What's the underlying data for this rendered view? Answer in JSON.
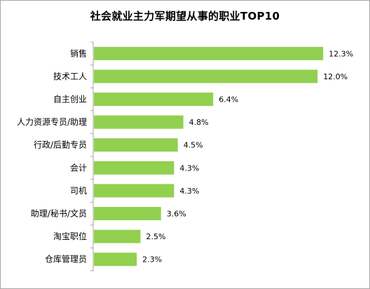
{
  "chart_data": {
    "type": "bar",
    "orientation": "horizontal",
    "title": "社会就业主力军期望从事的职业TOP10",
    "categories": [
      "销售",
      "技术工人",
      "自主创业",
      "人力资源专员/助理",
      "行政/后勤专员",
      "会计",
      "司机",
      "助理/秘书/文员",
      "淘宝职位",
      "仓库管理员"
    ],
    "values": [
      12.3,
      12.0,
      6.4,
      4.8,
      4.5,
      4.3,
      4.3,
      3.6,
      2.5,
      2.3
    ],
    "value_labels": [
      "12.3%",
      "12.0%",
      "6.4%",
      "4.8%",
      "4.5%",
      "4.3%",
      "4.3%",
      "3.6%",
      "2.5%",
      "2.3%"
    ],
    "unit": "%",
    "xlabel": "",
    "ylabel": "",
    "grid": false,
    "legend": "none",
    "bar_color": "#92d050",
    "axis_color": "#a6a6a6"
  }
}
